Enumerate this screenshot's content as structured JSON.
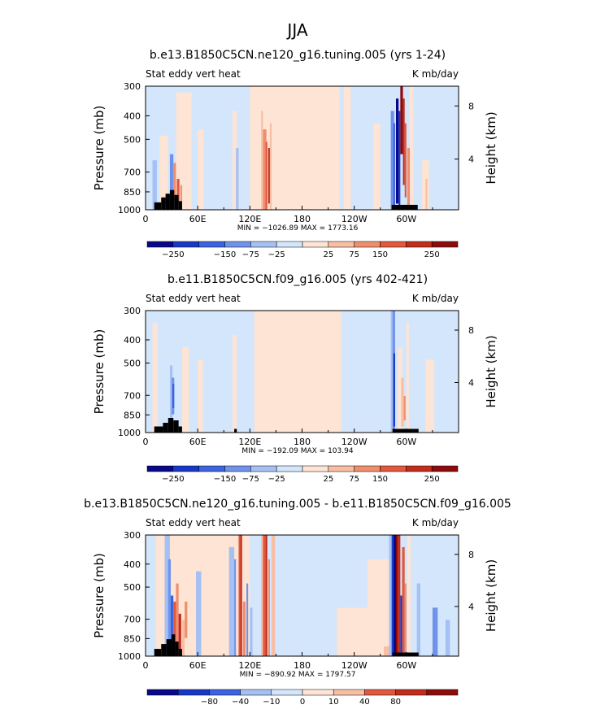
{
  "season": "JJA",
  "colorbar_palette": [
    "#08088a",
    "#1738c7",
    "#3c63e0",
    "#6f93ea",
    "#a5c0f2",
    "#d3e6fb",
    "#fde4d4",
    "#f7bea4",
    "#ef8e6c",
    "#e0583d",
    "#c22c1c",
    "#8e0b0b"
  ],
  "chart_data": [
    {
      "type": "heatmap",
      "title": "b.e13.B1850C5CN.ne120_g16.tuning.005 (yrs 1-24)",
      "left_label": "Stat eddy vert heat",
      "right_label": "K mb/day",
      "ylabel": "Pressure (mb)",
      "y2label": "Height (km)",
      "xticks": [
        "0",
        "60E",
        "120E",
        "180",
        "120W",
        "60W"
      ],
      "yticks": [
        "300",
        "400",
        "500",
        "700",
        "850",
        "1000"
      ],
      "y2ticks": [
        "8",
        "4"
      ],
      "stats": "MIN = −1026.89   MAX = 1773.16",
      "colorbar_labels": [
        "−250",
        "−150",
        "−75",
        "−25",
        "25",
        "75",
        "150",
        "250"
      ],
      "min": -1026.89,
      "max": 1773.16
    },
    {
      "type": "heatmap",
      "title": "b.e11.B1850C5CN.f09_g16.005 (yrs 402-421)",
      "left_label": "Stat eddy vert heat",
      "right_label": "K mb/day",
      "ylabel": "Pressure (mb)",
      "y2label": "Height (km)",
      "xticks": [
        "0",
        "60E",
        "120E",
        "180",
        "120W",
        "60W"
      ],
      "yticks": [
        "300",
        "400",
        "500",
        "700",
        "850",
        "1000"
      ],
      "y2ticks": [
        "8",
        "4"
      ],
      "stats": "MIN = −192.09   MAX = 103.94",
      "colorbar_labels": [
        "−250",
        "−150",
        "−75",
        "−25",
        "25",
        "75",
        "150",
        "250"
      ],
      "min": -192.09,
      "max": 103.94
    },
    {
      "type": "heatmap",
      "title": "b.e13.B1850C5CN.ne120_g16.tuning.005 - b.e11.B1850C5CN.f09_g16.005",
      "left_label": "Stat eddy vert heat",
      "right_label": "K mb/day",
      "ylabel": "Pressure (mb)",
      "y2label": "Height (km)",
      "xticks": [
        "0",
        "60E",
        "120E",
        "180",
        "120W",
        "60W"
      ],
      "yticks": [
        "300",
        "400",
        "500",
        "700",
        "850",
        "1000"
      ],
      "y2ticks": [
        "8",
        "4"
      ],
      "stats": "MIN = −890.92   MAX = 1797.57",
      "colorbar_labels": [
        "−80",
        "−40",
        "−10",
        "0",
        "10",
        "40",
        "80"
      ],
      "min": -890.92,
      "max": 1797.57
    }
  ]
}
